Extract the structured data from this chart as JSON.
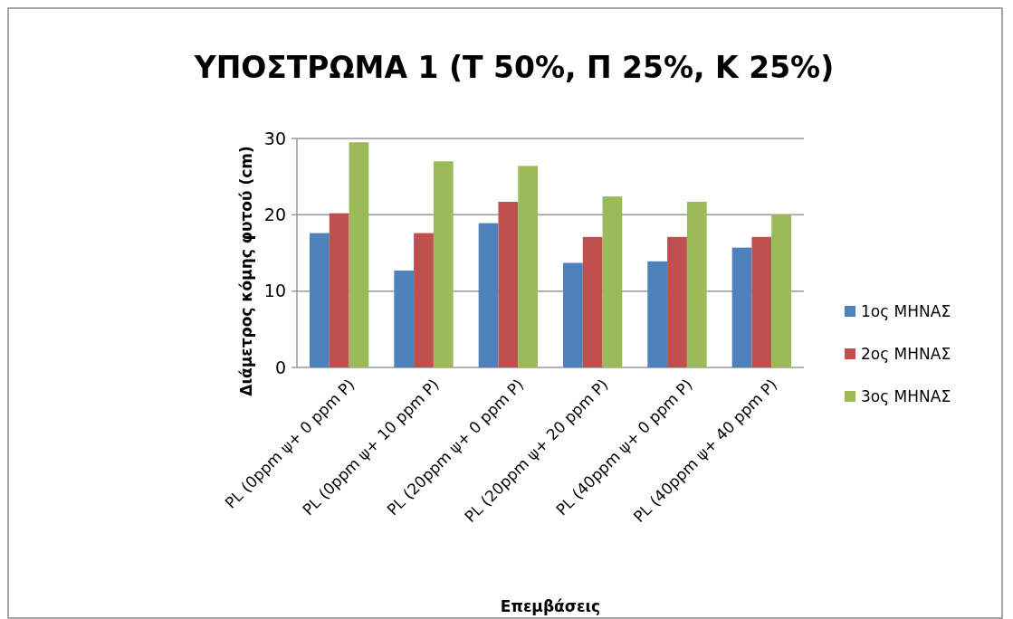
{
  "chart_data": {
    "type": "bar",
    "title": "ΥΠΟΣΤΡΩΜΑ 1 (Τ 50%, Π 25%, Κ 25%)",
    "xlabel": "Επεμβάσεις",
    "ylabel": "Διάμετρος κόμης φυτού (cm)",
    "categories": [
      "PL (0ppm ψ+ 0 ppm P)",
      "PL (0ppm ψ+ 10 ppm P)",
      "PL (20ppm ψ+ 0 ppm P)",
      "PL (20ppm ψ+ 20 ppm P)",
      "PL (40ppm ψ+ 0 ppm P)",
      "PL (40ppm ψ+ 40 ppm P)"
    ],
    "series": [
      {
        "name": "1ος ΜΗΝΑΣ",
        "color": "#4f81bd",
        "values": [
          17.6,
          12.7,
          18.9,
          13.7,
          13.9,
          15.7
        ]
      },
      {
        "name": "2ος ΜΗΝΑΣ",
        "color": "#c0504d",
        "values": [
          20.2,
          17.6,
          21.7,
          17.1,
          17.1,
          17.1
        ]
      },
      {
        "name": "3ος ΜΗΝΑΣ",
        "color": "#9bbb59",
        "values": [
          29.5,
          27.0,
          26.4,
          22.4,
          21.7,
          20.0
        ]
      }
    ],
    "ylim": [
      0,
      30
    ],
    "yticks": [
      0,
      10,
      20,
      30
    ],
    "grid": "y",
    "legend": "right"
  }
}
